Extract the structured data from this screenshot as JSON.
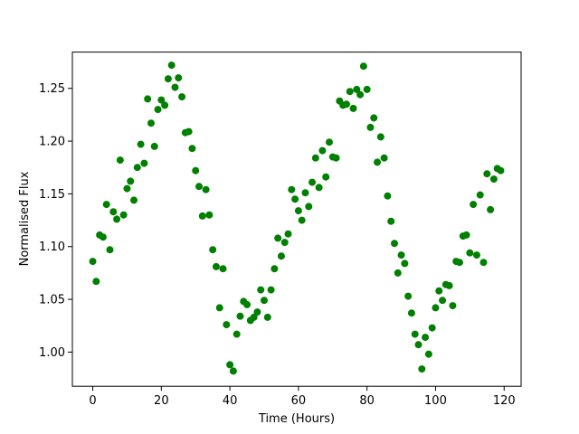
{
  "chart_data": {
    "type": "scatter",
    "x_label": "Time (Hours)",
    "y_label": "Normalised Flux",
    "x": [
      0,
      1,
      2,
      3,
      4,
      5,
      6,
      7,
      8,
      9,
      10,
      11,
      12,
      13,
      14,
      15,
      16,
      17,
      18,
      19,
      20,
      21,
      22,
      23,
      24,
      25,
      26,
      27,
      28,
      29,
      30,
      31,
      32,
      33,
      34,
      35,
      36,
      37,
      38,
      39,
      40,
      41,
      42,
      43,
      44,
      45,
      46,
      47,
      48,
      49,
      50,
      51,
      52,
      53,
      54,
      55,
      56,
      57,
      58,
      59,
      60,
      61,
      62,
      63,
      64,
      65,
      66,
      67,
      68,
      69,
      70,
      71,
      72,
      73,
      74,
      75,
      76,
      77,
      78,
      79,
      80,
      81,
      82,
      83,
      84,
      85,
      86,
      87,
      88,
      89,
      90,
      91,
      92,
      93,
      94,
      95,
      96,
      97,
      98,
      99,
      100,
      101,
      102,
      103,
      104,
      105,
      106,
      107,
      108,
      109,
      110,
      111,
      112,
      113,
      114,
      115,
      116,
      117,
      118,
      119
    ],
    "values": [
      1.086,
      1.067,
      1.111,
      1.109,
      1.14,
      1.097,
      1.133,
      1.126,
      1.182,
      1.13,
      1.155,
      1.162,
      1.144,
      1.175,
      1.197,
      1.179,
      1.24,
      1.217,
      1.195,
      1.23,
      1.239,
      1.234,
      1.259,
      1.272,
      1.251,
      1.26,
      1.242,
      1.208,
      1.209,
      1.193,
      1.172,
      1.157,
      1.129,
      1.154,
      1.13,
      1.097,
      1.081,
      1.042,
      1.079,
      1.026,
      0.988,
      0.982,
      1.017,
      1.034,
      1.048,
      1.045,
      1.03,
      1.033,
      1.038,
      1.059,
      1.049,
      1.033,
      1.059,
      1.079,
      1.108,
      1.091,
      1.104,
      1.112,
      1.154,
      1.145,
      1.134,
      1.125,
      1.151,
      1.138,
      1.161,
      1.184,
      1.156,
      1.191,
      1.166,
      1.199,
      1.185,
      1.184,
      1.238,
      1.234,
      1.235,
      1.247,
      1.231,
      1.249,
      1.244,
      1.271,
      1.249,
      1.213,
      1.222,
      1.18,
      1.204,
      1.184,
      1.148,
      1.124,
      1.103,
      1.075,
      1.092,
      1.084,
      1.053,
      1.037,
      1.017,
      1.007,
      0.984,
      1.014,
      0.998,
      1.023,
      1.042,
      1.058,
      1.049,
      1.064,
      1.063,
      1.044,
      1.086,
      1.085,
      1.11,
      1.111,
      1.094,
      1.14,
      1.092,
      1.149,
      1.085,
      1.169,
      1.135,
      1.164,
      1.174,
      1.172
    ],
    "color": "#008000",
    "xlim": [
      -5.95,
      124.95
    ],
    "xticks": [
      0,
      20,
      40,
      60,
      80,
      100,
      120
    ],
    "ylim": [
      0.9676,
      1.2844
    ],
    "yticks": [
      {
        "value": 1,
        "label": "1.00"
      },
      1.05,
      {
        "value": 1.1,
        "label": "1.10"
      },
      1.15,
      {
        "value": 1.2,
        "label": "1.20"
      },
      1.25
    ],
    "grid": false
  }
}
